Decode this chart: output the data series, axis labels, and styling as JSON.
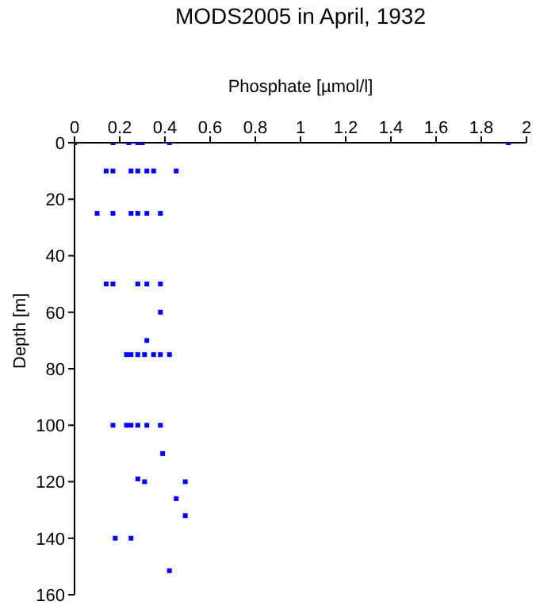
{
  "chart_data": {
    "type": "scatter",
    "title": "MODS2005 in April, 1932",
    "xlabel": "Phosphate [µmol/l]",
    "ylabel": "Depth [m]",
    "x": [
      0,
      0.17,
      0.24,
      0.28,
      0.3,
      0.42,
      1.92,
      0.14,
      0.17,
      0.25,
      0.28,
      0.32,
      0.35,
      0.45,
      0.1,
      0.17,
      0.25,
      0.28,
      0.32,
      0.38,
      0.14,
      0.17,
      0.28,
      0.32,
      0.38,
      0.38,
      0.32,
      0.23,
      0.25,
      0.28,
      0.31,
      0.35,
      0.38,
      0.42,
      0.17,
      0.23,
      0.25,
      0.28,
      0.32,
      0.38,
      0.39,
      0.28,
      0.31,
      0.49,
      0.45,
      0.49,
      0.18,
      0.25,
      0.42
    ],
    "series": [
      {
        "color": "#0000ff",
        "values": [
          0,
          0,
          0,
          0,
          0,
          0,
          0,
          10,
          10,
          10,
          10,
          10,
          10,
          10,
          25,
          25,
          25,
          25,
          25,
          25,
          50,
          50,
          50,
          50,
          50,
          60,
          70,
          75,
          75,
          75,
          75,
          75,
          75,
          75,
          100,
          100,
          100,
          100,
          100,
          100,
          110,
          119,
          120,
          120,
          126,
          132,
          140,
          140,
          151.5
        ]
      }
    ],
    "xlim": [
      0,
      2
    ],
    "xticks": [
      0,
      0.2,
      0.4,
      0.6,
      0.8,
      1,
      1.2,
      1.4,
      1.6,
      1.8,
      2
    ],
    "ylim": [
      160,
      0
    ],
    "yticks": [
      0,
      20,
      40,
      60,
      80,
      100,
      120,
      140,
      160
    ],
    "grid": false,
    "legend": false,
    "marker": "square"
  }
}
